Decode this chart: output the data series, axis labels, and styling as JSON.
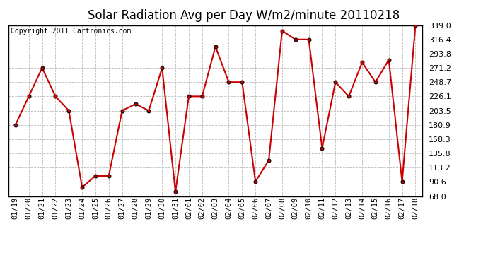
{
  "title": "Solar Radiation Avg per Day W/m2/minute 20110218",
  "copyright": "Copyright 2011 Cartronics.com",
  "dates": [
    "01/19",
    "01/20",
    "01/21",
    "01/22",
    "01/23",
    "01/24",
    "01/25",
    "01/26",
    "01/27",
    "01/28",
    "01/29",
    "01/30",
    "01/31",
    "02/01",
    "02/02",
    "02/03",
    "02/04",
    "02/05",
    "02/06",
    "02/07",
    "02/08",
    "02/09",
    "02/10",
    "02/11",
    "02/12",
    "02/13",
    "02/14",
    "02/15",
    "02/16",
    "02/17",
    "02/18"
  ],
  "values": [
    180.9,
    226.1,
    271.2,
    226.1,
    203.5,
    82.0,
    100.0,
    100.0,
    203.5,
    214.0,
    203.5,
    271.2,
    75.0,
    226.1,
    226.1,
    305.0,
    248.7,
    248.7,
    91.0,
    125.0,
    330.0,
    316.4,
    316.4,
    144.0,
    248.7,
    226.1,
    280.0,
    248.7,
    284.0,
    91.0,
    339.0
  ],
  "line_color": "#cc0000",
  "marker_color": "#000000",
  "bg_color": "#ffffff",
  "grid_color": "#bbbbbb",
  "ylim_min": 68.0,
  "ylim_max": 339.0,
  "yticks": [
    68.0,
    90.6,
    113.2,
    135.8,
    158.3,
    180.9,
    203.5,
    226.1,
    248.7,
    271.2,
    293.8,
    316.4,
    339.0
  ],
  "title_fontsize": 12,
  "copyright_fontsize": 7,
  "tick_fontsize": 7.5,
  "ytick_fontsize": 8
}
